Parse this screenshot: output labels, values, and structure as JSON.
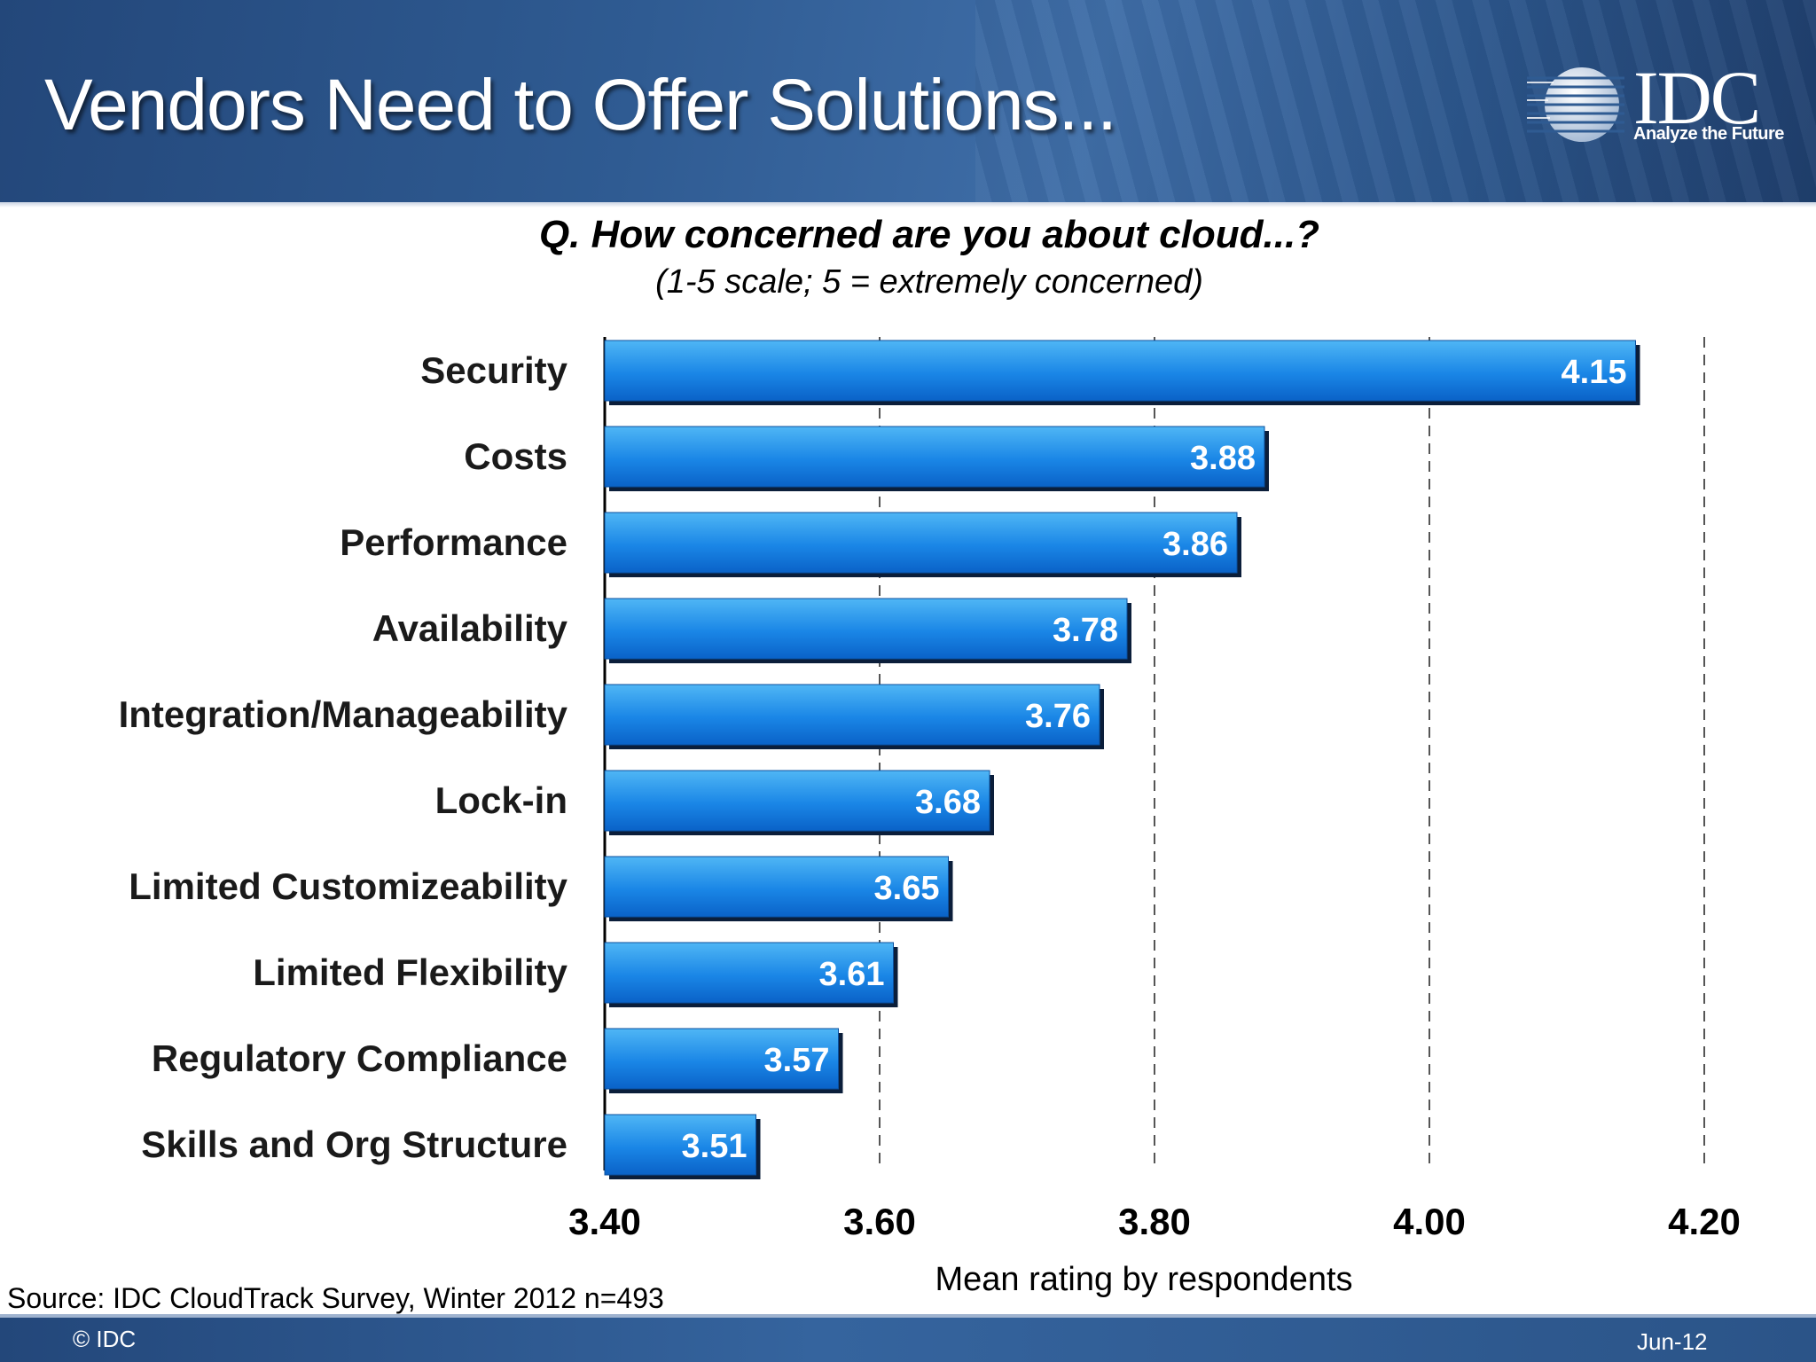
{
  "slide": {
    "title": "Vendors Need to Offer Solutions...",
    "logo_text": "IDC",
    "logo_tagline": "Analyze the Future",
    "source": "Source: IDC CloudTrack Survey, Winter 2012  n=493",
    "copyright": "© IDC",
    "date": "Jun-12"
  },
  "colors": {
    "bar_top": "#4fb6f5",
    "bar_bottom": "#0a62c8",
    "header": "#2f5b92"
  },
  "chart_data": {
    "type": "bar",
    "orientation": "horizontal",
    "title": "Q. How concerned are you about cloud...?",
    "subtitle": "(1-5 scale; 5 = extremely concerned)",
    "xlabel": "Mean rating by respondents",
    "ylabel": "",
    "categories": [
      "Security",
      "Costs",
      "Performance",
      "Availability",
      "Integration/Manageability",
      "Lock-in",
      "Limited Customizeability",
      "Limited Flexibility",
      "Regulatory Compliance",
      "Skills and Org Structure"
    ],
    "values": [
      4.15,
      3.88,
      3.86,
      3.78,
      3.76,
      3.68,
      3.65,
      3.61,
      3.57,
      3.51
    ],
    "value_labels": [
      "4.15",
      "3.88",
      "3.86",
      "3.78",
      "3.76",
      "3.68",
      "3.65",
      "3.61",
      "3.57",
      "3.51"
    ],
    "xlim": [
      3.4,
      4.2
    ],
    "xticks": [
      3.4,
      3.6,
      3.8,
      4.0,
      4.2
    ],
    "xtick_labels": [
      "3.40",
      "3.60",
      "3.80",
      "4.00",
      "4.20"
    ],
    "grid": "vertical dashed",
    "legend": "none"
  }
}
